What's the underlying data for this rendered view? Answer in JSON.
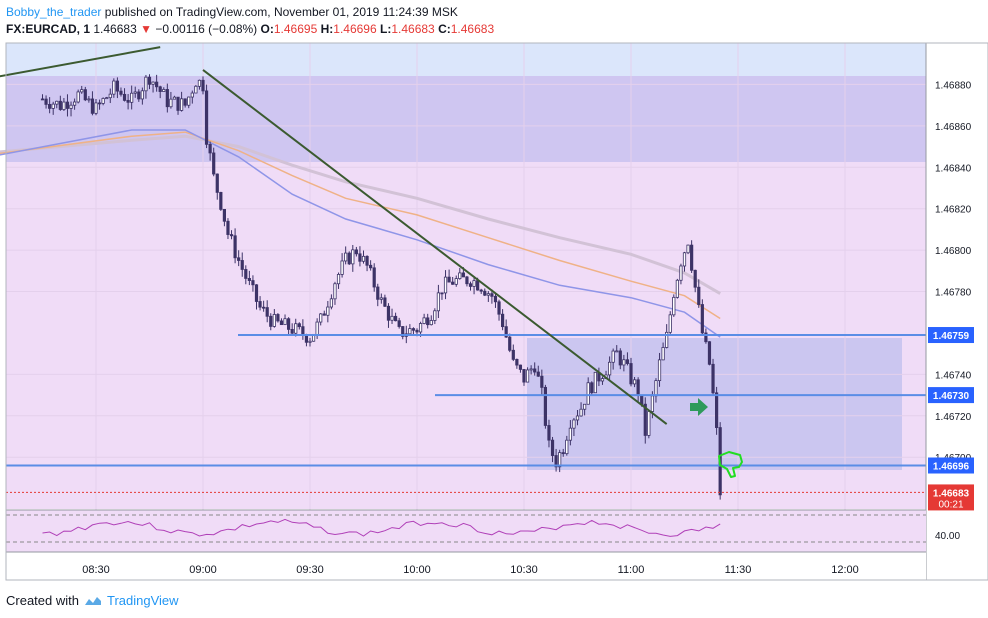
{
  "header": {
    "author": "Bobby_the_trader",
    "published": " published on TradingView.com, November 01, 2019 11:24:39 MSK",
    "symbol": "FX:EURCAD, 1",
    "last": "1.46683",
    "change_arrow": "▼",
    "change": "−0.00116 (−0.08%)",
    "o_label": "O:",
    "o": "1.46695",
    "h_label": "H:",
    "h": "1.46696",
    "l_label": "L:",
    "l": "1.46683",
    "c_label": "C:",
    "c": "1.46683"
  },
  "footer": {
    "created_with": "Created with",
    "brand": "TradingView"
  },
  "colors": {
    "background": "#f0dcf7",
    "top_zone": "#dbe6fb",
    "resistance_zone": "#c9c2f0",
    "consolidation_zone": "#c4c2ee",
    "level_line": "#5a8de6",
    "trend_line": "#3b5a30",
    "candle": "#3d3367",
    "sma_blue": "#8f95e8",
    "sma_orange": "#efb287",
    "sma_grey": "#d2c2d6",
    "rsi": "#b040b8",
    "current_price": "#e53935",
    "arrow_green": "#2e9a5a",
    "thumb_green": "#22dd22"
  },
  "chart_data": {
    "type": "candlestick",
    "symbol": "FX:EURCAD",
    "timeframe": "1",
    "x_ticks": [
      "08:30",
      "09:00",
      "09:30",
      "10:00",
      "10:30",
      "11:00",
      "11:30",
      "12:00"
    ],
    "y_ticks": [
      "1.46880",
      "1.46860",
      "1.46840",
      "1.46820",
      "1.46800",
      "1.46780",
      "1.46740",
      "1.46720",
      "1.46700"
    ],
    "ylim": [
      1.46675,
      1.469
    ],
    "levels": [
      {
        "value": 1.46759,
        "label": "1.46759"
      },
      {
        "value": 1.4673,
        "label": "1.46730"
      },
      {
        "value": 1.46696,
        "label": "1.46696"
      }
    ],
    "current_price": {
      "value": 1.46683,
      "label": "1.46683",
      "countdown": "00:21"
    },
    "rsi": {
      "label": "40.00",
      "level": 40
    },
    "price_path": [
      [
        "08:15",
        1.46873
      ],
      [
        "08:20",
        1.4687
      ],
      [
        "08:25",
        1.46875
      ],
      [
        "08:30",
        1.46868
      ],
      [
        "08:35",
        1.46878
      ],
      [
        "08:40",
        1.46872
      ],
      [
        "08:45",
        1.46884
      ],
      [
        "08:50",
        1.46872
      ],
      [
        "08:55",
        1.4687
      ],
      [
        "08:58",
        1.46882
      ],
      [
        "09:00",
        1.4688
      ],
      [
        "09:01",
        1.46855
      ],
      [
        "09:03",
        1.46835
      ],
      [
        "09:05",
        1.46823
      ],
      [
        "09:07",
        1.46808
      ],
      [
        "09:10",
        1.46795
      ],
      [
        "09:13",
        1.46783
      ],
      [
        "09:16",
        1.46772
      ],
      [
        "09:20",
        1.46765
      ],
      [
        "09:25",
        1.46762
      ],
      [
        "09:30",
        1.46758
      ],
      [
        "09:33",
        1.46766
      ],
      [
        "09:37",
        1.46785
      ],
      [
        "09:40",
        1.46795
      ],
      [
        "09:43",
        1.468
      ],
      [
        "09:46",
        1.46792
      ],
      [
        "09:50",
        1.46775
      ],
      [
        "09:55",
        1.4676
      ],
      [
        "10:00",
        1.46762
      ],
      [
        "10:04",
        1.4677
      ],
      [
        "10:07",
        1.46782
      ],
      [
        "10:10",
        1.46785
      ],
      [
        "10:15",
        1.46786
      ],
      [
        "10:18",
        1.46783
      ],
      [
        "10:21",
        1.46778
      ],
      [
        "10:24",
        1.46765
      ],
      [
        "10:27",
        1.46745
      ],
      [
        "10:30",
        1.46738
      ],
      [
        "10:33",
        1.46745
      ],
      [
        "10:35",
        1.4673
      ],
      [
        "10:37",
        1.46705
      ],
      [
        "10:39",
        1.46698
      ],
      [
        "10:41",
        1.46705
      ],
      [
        "10:43",
        1.46718
      ],
      [
        "10:46",
        1.46724
      ],
      [
        "10:48",
        1.46733
      ],
      [
        "10:50",
        1.46737
      ],
      [
        "10:53",
        1.46743
      ],
      [
        "10:56",
        1.4675
      ],
      [
        "10:58",
        1.46745
      ],
      [
        "11:00",
        1.46738
      ],
      [
        "11:02",
        1.46732
      ],
      [
        "11:04",
        1.46712
      ],
      [
        "11:06",
        1.46728
      ],
      [
        "11:08",
        1.46745
      ],
      [
        "11:10",
        1.46758
      ],
      [
        "11:12",
        1.4678
      ],
      [
        "11:14",
        1.46795
      ],
      [
        "11:16",
        1.46805
      ],
      [
        "11:18",
        1.46782
      ],
      [
        "11:20",
        1.4676
      ],
      [
        "11:22",
        1.46745
      ],
      [
        "11:23",
        1.4673
      ],
      [
        "11:24",
        1.46712
      ],
      [
        "11:25",
        1.46683
      ]
    ],
    "sma_blue": [
      [
        "08:00",
        1.46845
      ],
      [
        "08:40",
        1.46858
      ],
      [
        "08:55",
        1.46858
      ],
      [
        "09:10",
        1.46845
      ],
      [
        "09:25",
        1.46827
      ],
      [
        "09:40",
        1.46815
      ],
      [
        "10:00",
        1.46805
      ],
      [
        "10:20",
        1.46793
      ],
      [
        "10:40",
        1.46783
      ],
      [
        "11:00",
        1.46777
      ],
      [
        "11:15",
        1.4677
      ],
      [
        "11:25",
        1.46758
      ]
    ],
    "sma_orange": [
      [
        "08:00",
        1.46846
      ],
      [
        "08:40",
        1.46855
      ],
      [
        "08:55",
        1.46857
      ],
      [
        "09:10",
        1.46848
      ],
      [
        "09:25",
        1.46836
      ],
      [
        "09:40",
        1.46825
      ],
      [
        "10:00",
        1.46817
      ],
      [
        "10:20",
        1.46806
      ],
      [
        "10:40",
        1.46795
      ],
      [
        "11:00",
        1.46785
      ],
      [
        "11:15",
        1.46778
      ],
      [
        "11:25",
        1.46767
      ]
    ],
    "sma_grey": [
      [
        "08:00",
        1.46847
      ],
      [
        "08:40",
        1.46853
      ],
      [
        "08:55",
        1.46855
      ],
      [
        "09:10",
        1.4685
      ],
      [
        "09:25",
        1.46841
      ],
      [
        "09:40",
        1.46833
      ],
      [
        "10:00",
        1.46825
      ],
      [
        "10:20",
        1.46815
      ],
      [
        "10:40",
        1.46806
      ],
      [
        "11:00",
        1.46798
      ],
      [
        "11:15",
        1.46789
      ],
      [
        "11:25",
        1.46779
      ]
    ],
    "trend_lines": [
      {
        "from": [
          "08:00",
          1.46883
        ],
        "to": [
          "08:48",
          1.46898
        ]
      },
      {
        "from": [
          "09:00",
          1.46887
        ],
        "to": [
          "11:10",
          1.46716
        ]
      }
    ]
  }
}
